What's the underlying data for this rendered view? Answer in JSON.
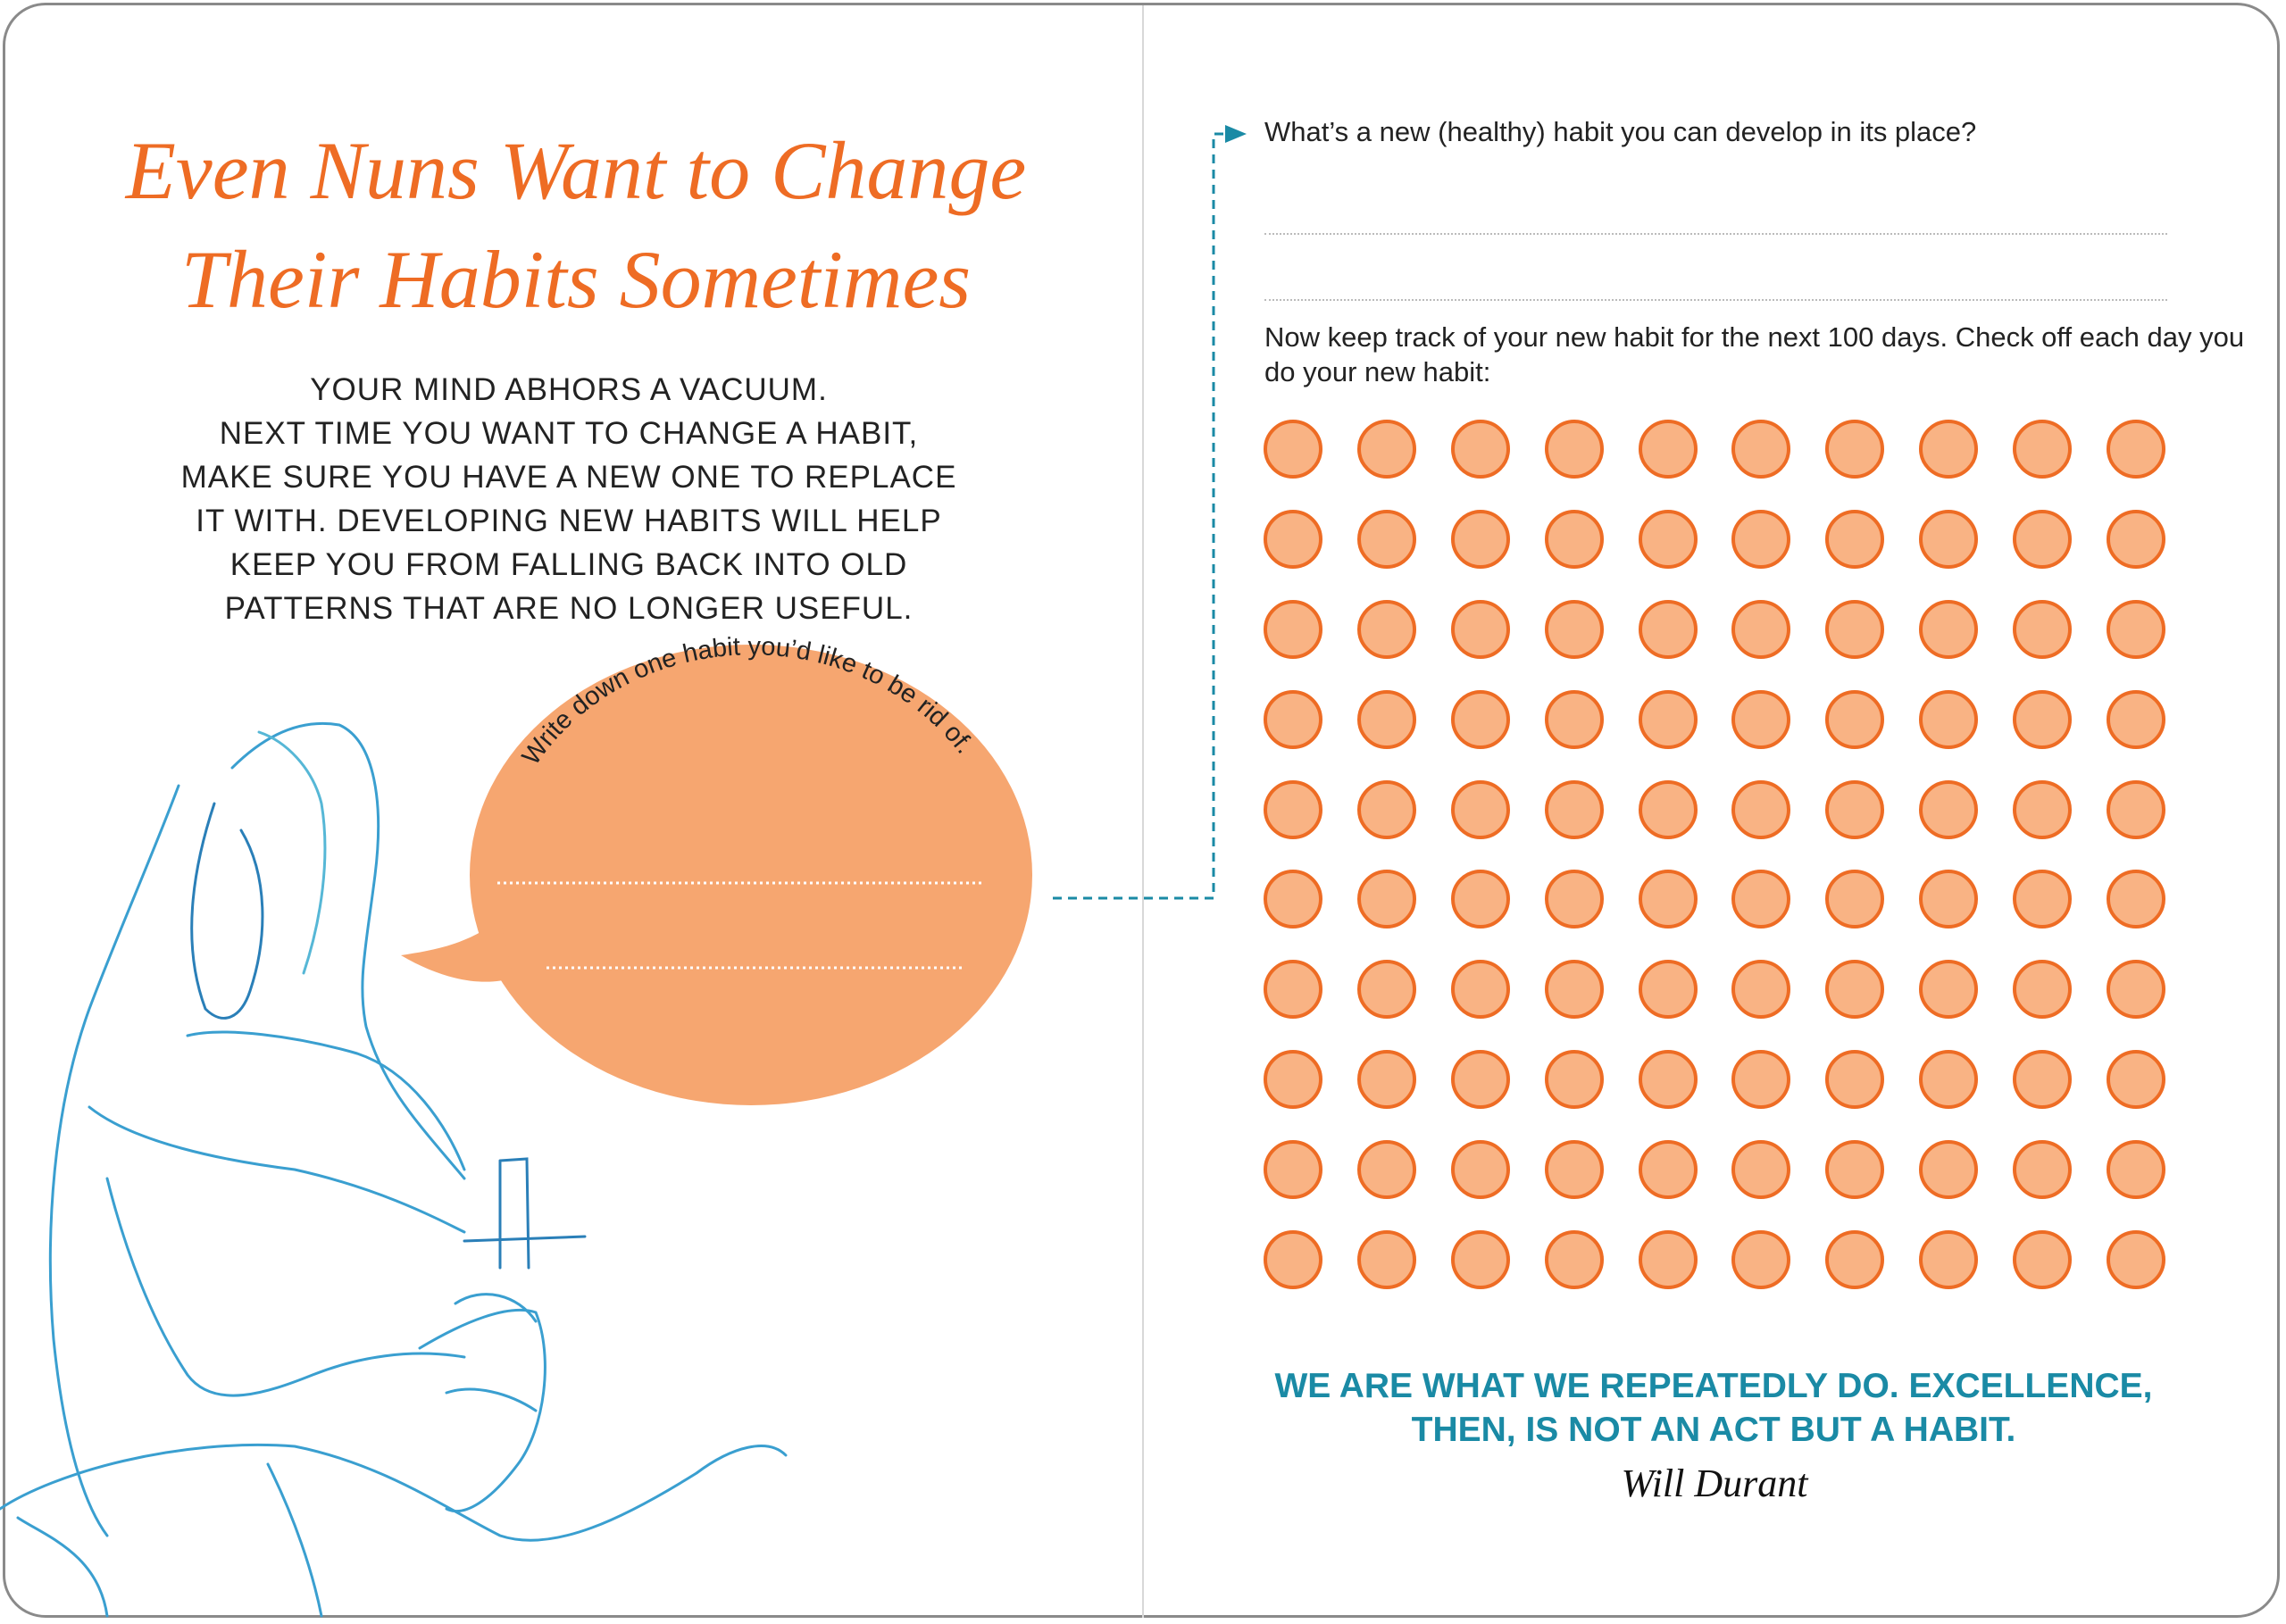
{
  "left_page": {
    "title_lines": [
      "Even Nuns Want to Change",
      "Their Habits Sometimes"
    ],
    "body_lines": [
      "YOUR MIND ABHORS A VACUUM.",
      "NEXT TIME YOU WANT TO CHANGE A HABIT,",
      "MAKE SURE YOU HAVE A NEW ONE TO REPLACE",
      "IT WITH. DEVELOPING NEW HABITS WILL HELP",
      "KEEP YOU FROM FALLING BACK INTO OLD",
      "PATTERNS THAT ARE NO LONGER USEFUL."
    ],
    "bubble_prompt": "Write down one habit you’d like to be rid of."
  },
  "right_page": {
    "question": "What’s a new (healthy) habit you can develop in its place?",
    "tracker_instructions": "Now keep track of your new habit for the next 100 days. Check off each day you do your new habit:",
    "tracker_days": 100,
    "quote_lines": [
      "WE ARE WHAT WE REPEATEDLY DO. EXCELLENCE,",
      "THEN, IS NOT AN ACT BUT A HABIT."
    ],
    "quote_author": "Will Durant"
  },
  "colors": {
    "accent_orange": "#ee6c24",
    "bubble_fill": "#f6a670",
    "dot_fill": "#f9b384",
    "teal": "#1a8aa5"
  }
}
